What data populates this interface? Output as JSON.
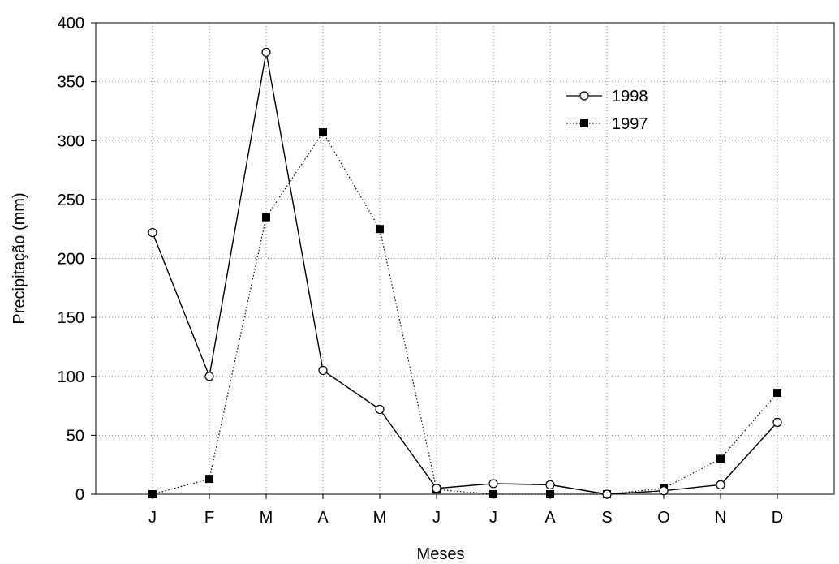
{
  "chart_data": {
    "type": "line",
    "title": "",
    "xlabel": "Meses",
    "ylabel": "Precipitação (mm)",
    "categories": [
      "J",
      "F",
      "M",
      "A",
      "M",
      "J",
      "J",
      "A",
      "S",
      "O",
      "N",
      "D"
    ],
    "ylim": [
      0,
      400
    ],
    "yticks": [
      "0",
      "50",
      "100",
      "150",
      "200",
      "250",
      "300",
      "350",
      "400"
    ],
    "grid": true,
    "legend_position": "top-right",
    "series": [
      {
        "name": "1998",
        "marker": "open-circle",
        "line": "solid",
        "values": [
          222,
          100,
          375,
          105,
          72,
          5,
          9,
          8,
          0,
          3,
          8,
          61
        ]
      },
      {
        "name": "1997",
        "marker": "filled-square",
        "line": "dotted",
        "values": [
          0,
          13,
          235,
          307,
          225,
          4,
          0,
          0,
          0,
          5,
          30,
          86
        ]
      }
    ]
  }
}
